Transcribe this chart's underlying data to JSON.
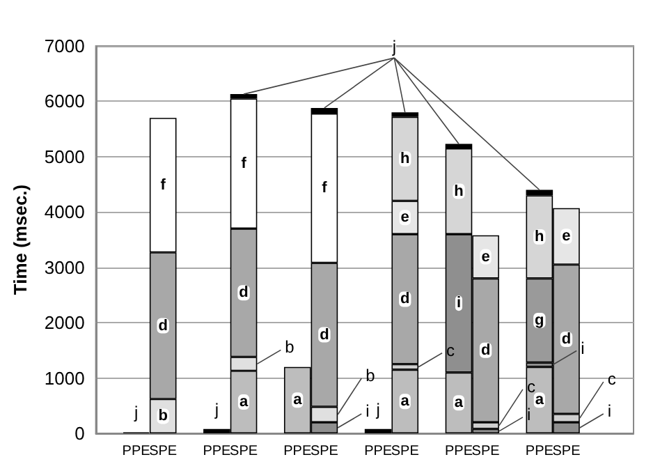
{
  "chart_data": {
    "type": "bar",
    "stacked": true,
    "ylabel": "Time (msec.)",
    "categories": [
      null,
      "PPE",
      "SPE",
      null,
      "PPE",
      "SPE",
      null,
      "PPE",
      "SPE",
      null,
      "PPE",
      "SPE",
      null,
      "PPE",
      "SPE",
      null,
      "PPE",
      "SPE",
      null,
      null
    ],
    "ylim": [
      0,
      7000
    ],
    "yticks": [
      0,
      1000,
      2000,
      3000,
      4000,
      5000,
      6000,
      7000
    ],
    "grid": "y",
    "legend": false,
    "series": [
      {
        "name": "a",
        "color": "#bdbdbd",
        "values": [
          null,
          null,
          null,
          null,
          null,
          1130,
          null,
          1200,
          null,
          null,
          null,
          1150,
          null,
          1100,
          null,
          null,
          1200,
          null,
          null,
          null
        ]
      },
      {
        "name": "i",
        "color": "#8f8f8f",
        "values": [
          null,
          null,
          null,
          null,
          null,
          null,
          null,
          null,
          200,
          null,
          null,
          null,
          null,
          2500,
          80,
          null,
          80,
          200,
          null,
          null
        ]
      },
      {
        "name": "c",
        "color": "#cfcfcf",
        "values": [
          null,
          null,
          null,
          null,
          null,
          null,
          null,
          null,
          null,
          null,
          null,
          100,
          null,
          null,
          120,
          null,
          null,
          150,
          null,
          null
        ]
      },
      {
        "name": "b",
        "color": "#e0e0e0",
        "values": [
          null,
          null,
          620,
          null,
          null,
          250,
          null,
          null,
          280,
          null,
          null,
          null,
          null,
          null,
          null,
          null,
          null,
          null,
          null,
          null
        ]
      },
      {
        "name": "g",
        "color": "#9a9a9a",
        "values": [
          null,
          null,
          null,
          null,
          null,
          null,
          null,
          null,
          null,
          null,
          null,
          null,
          null,
          null,
          null,
          null,
          1520,
          null,
          null,
          null
        ]
      },
      {
        "name": "d",
        "color": "#a8a8a8",
        "values": [
          null,
          null,
          2650,
          null,
          null,
          2320,
          null,
          null,
          2600,
          null,
          null,
          2350,
          null,
          null,
          2600,
          null,
          null,
          2700,
          null,
          null
        ]
      },
      {
        "name": "e",
        "color": "#e6e6e6",
        "values": [
          null,
          null,
          null,
          null,
          null,
          null,
          null,
          null,
          null,
          null,
          null,
          600,
          null,
          null,
          780,
          null,
          null,
          1020,
          null,
          null
        ]
      },
      {
        "name": "f",
        "color": "#ffffff",
        "values": [
          null,
          null,
          2430,
          null,
          null,
          2350,
          null,
          null,
          2700,
          null,
          null,
          null,
          null,
          null,
          null,
          null,
          null,
          null,
          null,
          null
        ]
      },
      {
        "name": "h",
        "color": "#d6d6d6",
        "values": [
          null,
          null,
          null,
          null,
          null,
          null,
          null,
          null,
          null,
          null,
          null,
          1520,
          null,
          1550,
          null,
          null,
          1500,
          null,
          null,
          null
        ]
      },
      {
        "name": "j",
        "color": "#000000",
        "values": [
          null,
          20,
          null,
          null,
          80,
          80,
          null,
          null,
          100,
          null,
          80,
          80,
          null,
          80,
          null,
          null,
          100,
          null,
          null,
          null
        ]
      }
    ]
  }
}
